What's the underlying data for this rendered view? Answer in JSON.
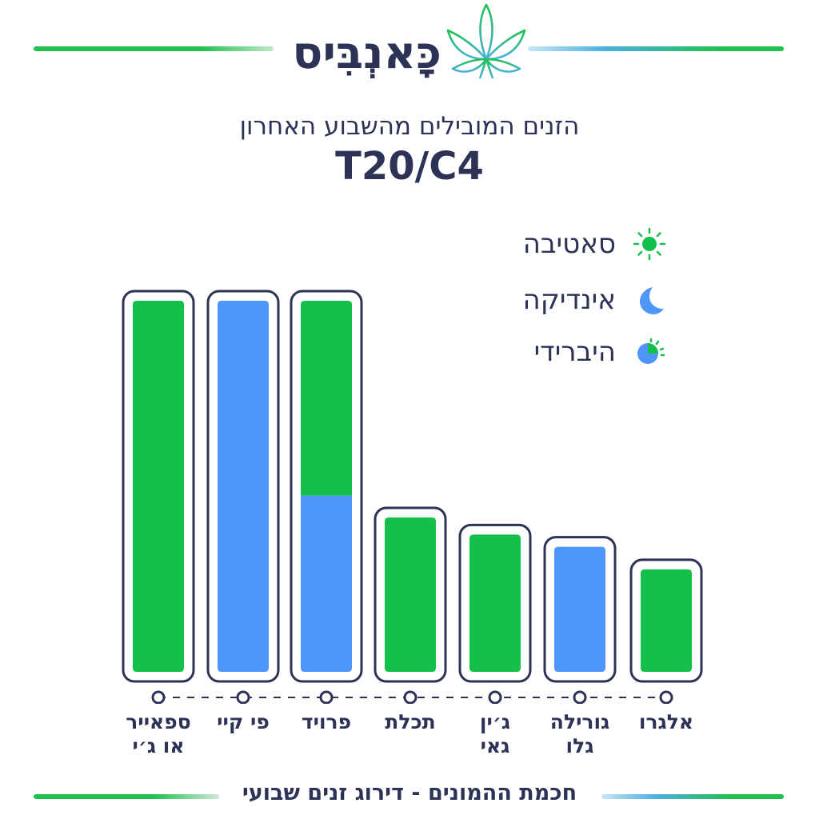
{
  "brand": {
    "name": "כָּאנְבִּיס",
    "logo_icon": "cannabis-leaf-icon"
  },
  "header": {
    "subtitle": "הזנים המובילים מהשבוע האחרון",
    "title": "T20/C4"
  },
  "colors": {
    "sativa": "#12c04a",
    "indica": "#4f96fa",
    "outline": "#2c3356"
  },
  "legend": [
    {
      "label": "סאטיבה",
      "icon": "sun-icon"
    },
    {
      "label": "אינדיקה",
      "icon": "moon-icon"
    },
    {
      "label": "היברידי",
      "icon": "half-sun-moon-icon"
    }
  ],
  "chart_data": {
    "type": "bar",
    "stacked": true,
    "categories": [
      "ספאייר\nאו ג׳י",
      "פי קיי",
      "פרויד",
      "תכלת",
      "ג׳ין\nגאי",
      "גורילה\nגלו",
      "אלגרו"
    ],
    "series": [
      {
        "name": "סאטיבה",
        "values": [
          100,
          0,
          52.5,
          41.6,
          37,
          0,
          27.6
        ]
      },
      {
        "name": "אינדיקה",
        "values": [
          0,
          100,
          47.5,
          0,
          0,
          33.7,
          0
        ]
      }
    ],
    "ylim": [
      0,
      100
    ],
    "grid": false,
    "legend_position": "top-right"
  },
  "footer": {
    "text": "חכמת ההמונים - דירוג זנים שבועי"
  }
}
